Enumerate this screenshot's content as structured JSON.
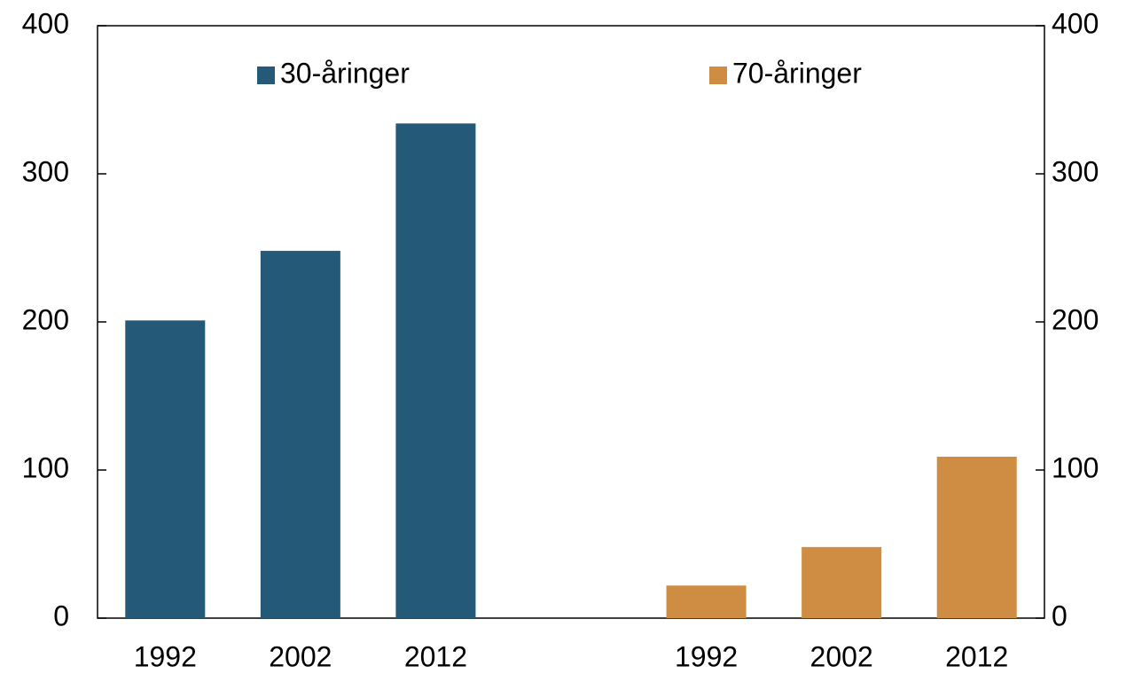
{
  "chart_data": {
    "type": "bar",
    "categories": [
      "1992",
      "2002",
      "2012",
      null,
      "1992",
      "2002",
      "2012"
    ],
    "series": [
      {
        "name": "30-åringer",
        "color": "#245a78",
        "values": [
          201,
          248,
          334,
          null,
          null,
          null,
          null
        ]
      },
      {
        "name": "70-åringer",
        "color": "#cf8d43",
        "values": [
          null,
          null,
          null,
          null,
          22,
          48,
          109
        ]
      }
    ],
    "ylim": [
      0,
      400
    ],
    "yticks": [
      0,
      100,
      200,
      300,
      400
    ],
    "y2lim": [
      0,
      400
    ],
    "y2ticks": [
      0,
      100,
      200,
      300,
      400
    ],
    "grid": false
  }
}
